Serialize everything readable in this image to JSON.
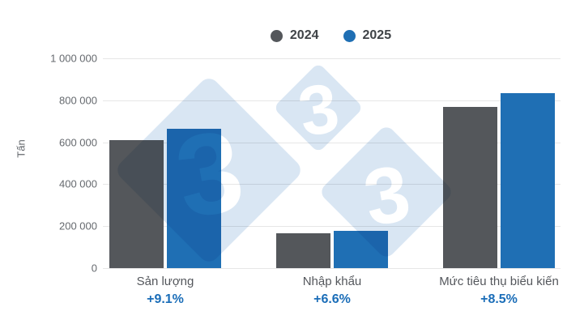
{
  "colors": {
    "background": "#ffffff",
    "gridline": "#e6e6e6",
    "series_2024": "#54575b",
    "series_2025": "#1f6fb4",
    "percent_text": "#1a6db8",
    "axis_text": "#65696e",
    "category_text": "#54575c",
    "legend_text": "#3f4347",
    "watermark_diamond": "#d9e6f3",
    "watermark_glyph": "#ffffff"
  },
  "watermark": {
    "glyph": "3",
    "name": "333-logo"
  },
  "chart_data": {
    "type": "bar",
    "title": "",
    "ylabel": "Tấn",
    "xlabel": "",
    "categories": [
      "Sản lượng",
      "Nhập khẩu",
      "Mức tiêu thụ biểu kiến"
    ],
    "series": [
      {
        "name": "2024",
        "color": "#54575b",
        "values": [
          610000,
          165000,
          770000
        ]
      },
      {
        "name": "2025",
        "color": "#1f6fb4",
        "values": [
          665000,
          176000,
          835000
        ]
      }
    ],
    "change_labels": [
      "+9.1%",
      "+6.6%",
      "+8.5%"
    ],
    "ylim": [
      0,
      1000000
    ],
    "ytick_step": 200000,
    "ytick_labels": [
      "1 000 000",
      "800 000",
      "600 000",
      "400 000",
      "200 000",
      "0"
    ],
    "grid": true,
    "legend_position": "top"
  }
}
